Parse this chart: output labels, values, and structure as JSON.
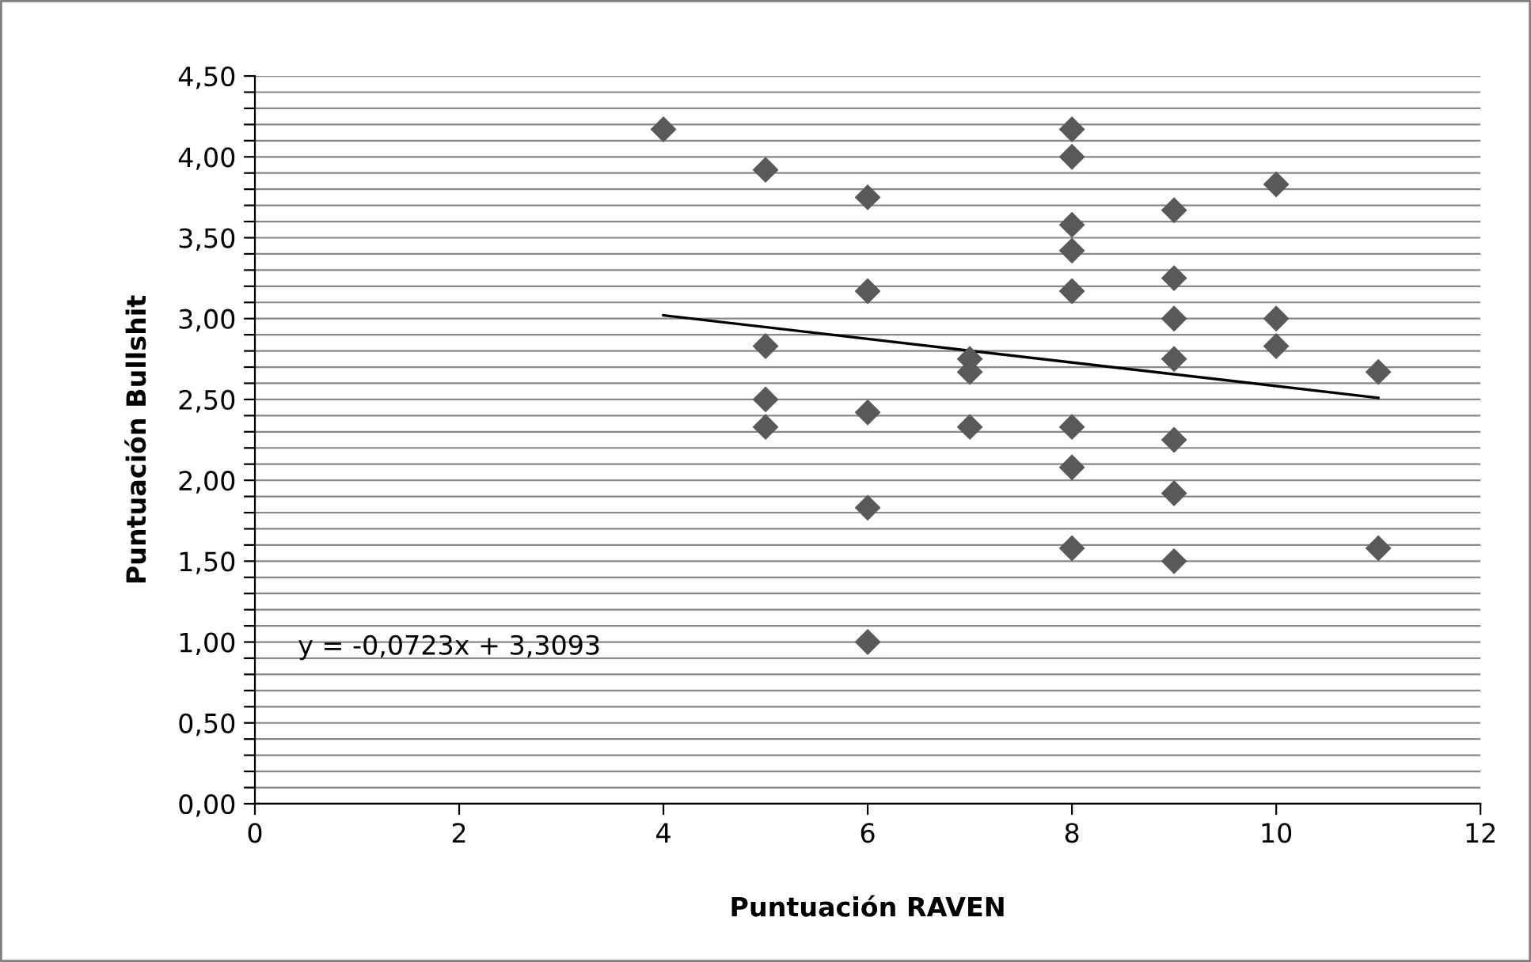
{
  "chart_data": {
    "type": "scatter",
    "xlabel": "Puntuación RAVEN",
    "ylabel": "Puntuación Bullshit",
    "xlim": [
      0,
      12
    ],
    "xticks": [
      0,
      2,
      4,
      6,
      8,
      10,
      12
    ],
    "ylim": [
      0,
      4.5
    ],
    "yticks": [
      {
        "value": 0,
        "label": "0,00"
      },
      {
        "value": 0.1,
        "label": null
      },
      {
        "value": 0.2,
        "label": null
      },
      {
        "value": 0.3,
        "label": null
      },
      {
        "value": 0.4,
        "label": null
      },
      {
        "value": 0.5,
        "label": "0,50"
      },
      {
        "value": 0.6,
        "label": null
      },
      {
        "value": 0.7,
        "label": null
      },
      {
        "value": 0.8,
        "label": null
      },
      {
        "value": 0.9,
        "label": null
      },
      {
        "value": 1.0,
        "label": "1,00"
      },
      {
        "value": 1.1,
        "label": null
      },
      {
        "value": 1.2,
        "label": null
      },
      {
        "value": 1.3,
        "label": null
      },
      {
        "value": 1.4,
        "label": null
      },
      {
        "value": 1.5,
        "label": "1,50"
      },
      {
        "value": 1.6,
        "label": null
      },
      {
        "value": 1.7,
        "label": null
      },
      {
        "value": 1.8,
        "label": null
      },
      {
        "value": 1.9,
        "label": null
      },
      {
        "value": 2.0,
        "label": "2,00"
      },
      {
        "value": 2.1,
        "label": null
      },
      {
        "value": 2.2,
        "label": null
      },
      {
        "value": 2.3,
        "label": null
      },
      {
        "value": 2.4,
        "label": null
      },
      {
        "value": 2.5,
        "label": "2,50"
      },
      {
        "value": 2.6,
        "label": null
      },
      {
        "value": 2.7,
        "label": null
      },
      {
        "value": 2.8,
        "label": null
      },
      {
        "value": 2.9,
        "label": null
      },
      {
        "value": 3.0,
        "label": "3,00"
      },
      {
        "value": 3.1,
        "label": null
      },
      {
        "value": 3.2,
        "label": null
      },
      {
        "value": 3.3,
        "label": null
      },
      {
        "value": 3.4,
        "label": null
      },
      {
        "value": 3.5,
        "label": "3,50"
      },
      {
        "value": 3.6,
        "label": null
      },
      {
        "value": 3.7,
        "label": null
      },
      {
        "value": 3.8,
        "label": null
      },
      {
        "value": 3.9,
        "label": null
      },
      {
        "value": 4.0,
        "label": "4,00"
      },
      {
        "value": 4.1,
        "label": null
      },
      {
        "value": 4.2,
        "label": null
      },
      {
        "value": 4.3,
        "label": null
      },
      {
        "value": 4.4,
        "label": null
      },
      {
        "value": 4.5,
        "label": "4,50"
      }
    ],
    "grid": "y",
    "legend": false,
    "series": [
      {
        "marker": "diamond",
        "color": "#595959",
        "x": [
          4,
          5,
          5,
          5,
          5,
          6,
          6,
          6,
          6,
          6,
          7,
          7,
          7,
          8,
          8,
          8,
          8,
          8,
          8,
          8,
          8,
          9,
          9,
          9,
          9,
          9,
          9,
          9,
          10,
          10,
          10,
          11,
          11
        ],
        "values": [
          4.17,
          3.92,
          2.83,
          2.5,
          2.33,
          3.75,
          3.17,
          2.42,
          1.83,
          1.0,
          2.75,
          2.67,
          2.33,
          4.17,
          4.0,
          3.58,
          3.42,
          3.17,
          2.33,
          2.08,
          1.58,
          3.67,
          3.25,
          3.0,
          2.75,
          2.25,
          1.92,
          1.5,
          3.83,
          3.0,
          2.83,
          2.67,
          1.58
        ]
      },
      {
        "type": "line",
        "marker": "none",
        "line_style": "solid",
        "color": "#000000",
        "x": [
          4,
          11
        ],
        "values": [
          3.02,
          2.51
        ]
      }
    ],
    "annotations": [
      "y = -0,0723x + 3,3093"
    ]
  }
}
